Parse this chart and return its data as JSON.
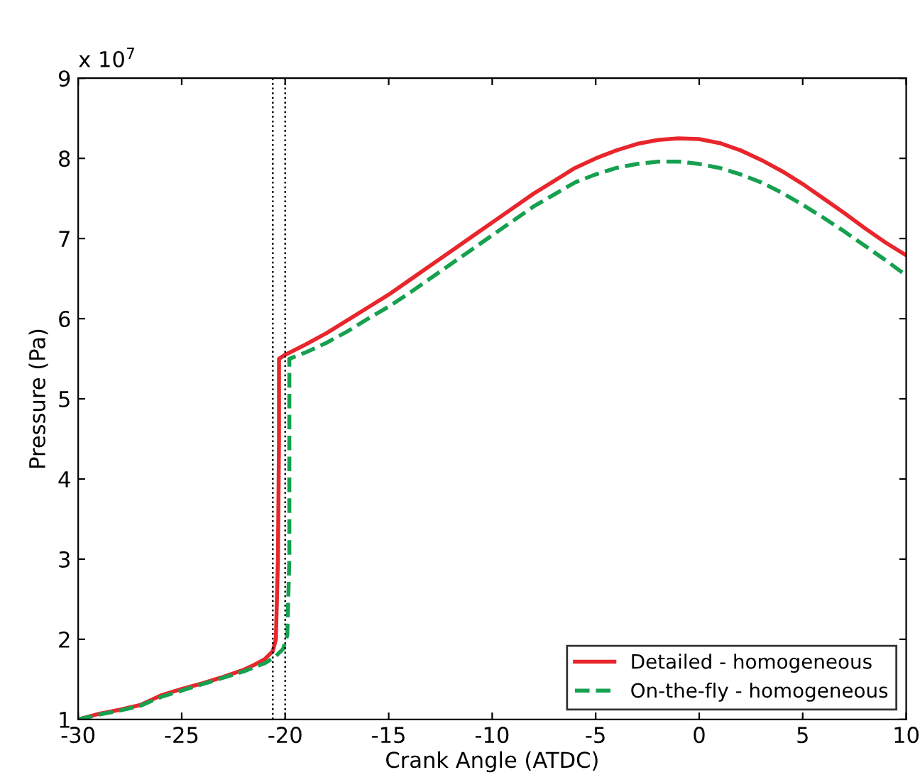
{
  "chart_data": {
    "type": "line",
    "xlabel": "Crank Angle (ATDC)",
    "ylabel": "Pressure (Pa)",
    "annotations": [
      "x 10$^{7}$"
    ],
    "xlim": [
      -30,
      10
    ],
    "xticks": [
      -30,
      -25,
      -20,
      -15,
      -10,
      -5,
      0,
      5,
      10
    ],
    "ylim": [
      1,
      9
    ],
    "yticks": [
      1,
      2,
      3,
      4,
      5,
      6,
      7,
      8,
      9
    ],
    "grid": false,
    "legend": "bottom right",
    "ref_lines": [
      {
        "axis": "x",
        "value": -20.6,
        "color": "#000000",
        "line_style": "dotted"
      },
      {
        "axis": "x",
        "value": -20.0,
        "color": "#000000",
        "line_style": "dotted"
      }
    ],
    "series": [
      {
        "name": "Detailed - homogeneous",
        "color": "#e8262c",
        "line_style": "solid",
        "x": [
          -30,
          -29,
          -28,
          -27,
          -26,
          -25,
          -24,
          -23,
          -22,
          -21.5,
          -21,
          -20.6,
          -20.45,
          -20.35,
          -20.3,
          -20.3,
          -20,
          -19,
          -18,
          -17,
          -16,
          -15,
          -14,
          -13,
          -12,
          -11,
          -10,
          -9,
          -8,
          -7,
          -6,
          -5,
          -4,
          -3,
          -2,
          -1,
          0,
          1,
          2,
          3,
          4,
          5,
          6,
          7,
          8,
          9,
          10
        ],
        "values": [
          1.0,
          1.07,
          1.12,
          1.18,
          1.3,
          1.38,
          1.45,
          1.53,
          1.62,
          1.68,
          1.75,
          1.85,
          2.0,
          3.0,
          4.5,
          5.5,
          5.55,
          5.68,
          5.82,
          5.98,
          6.14,
          6.3,
          6.48,
          6.66,
          6.84,
          7.02,
          7.2,
          7.38,
          7.56,
          7.72,
          7.88,
          8.0,
          8.1,
          8.18,
          8.23,
          8.25,
          8.24,
          8.19,
          8.1,
          7.98,
          7.84,
          7.68,
          7.5,
          7.32,
          7.13,
          6.95,
          6.79
        ]
      },
      {
        "name": "On-the-fly - homogeneous",
        "color": "#16a050",
        "line_style": "dashed",
        "x": [
          -30,
          -29,
          -28,
          -27,
          -26,
          -25,
          -24,
          -23,
          -22,
          -21.5,
          -21,
          -20.5,
          -20.1,
          -19.9,
          -19.8,
          -19.8,
          -19.5,
          -19,
          -18,
          -17,
          -16,
          -15,
          -14,
          -13,
          -12,
          -11,
          -10,
          -9,
          -8,
          -7,
          -6,
          -5,
          -4,
          -3,
          -2,
          -1,
          0,
          1,
          2,
          3,
          4,
          5,
          6,
          7,
          8,
          9,
          10
        ],
        "values": [
          1.0,
          1.06,
          1.11,
          1.17,
          1.28,
          1.36,
          1.44,
          1.52,
          1.6,
          1.65,
          1.7,
          1.78,
          1.88,
          2.05,
          3.0,
          5.5,
          5.53,
          5.58,
          5.7,
          5.84,
          6.0,
          6.15,
          6.32,
          6.5,
          6.68,
          6.86,
          7.04,
          7.22,
          7.4,
          7.55,
          7.7,
          7.8,
          7.88,
          7.93,
          7.96,
          7.96,
          7.93,
          7.88,
          7.8,
          7.7,
          7.57,
          7.42,
          7.26,
          7.09,
          6.91,
          6.73,
          6.54
        ]
      }
    ]
  }
}
